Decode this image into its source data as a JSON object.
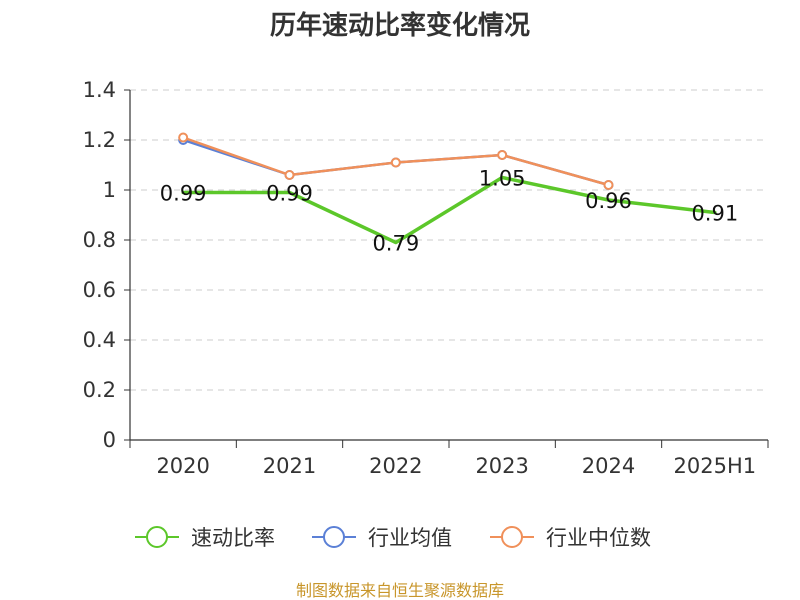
{
  "title": "历年速动比率变化情况",
  "source": "制图数据来自恒生聚源数据库",
  "chart_data": {
    "type": "line",
    "title": "历年速动比率变化情况",
    "xlabel": "",
    "ylabel": "",
    "categories": [
      "2020",
      "2021",
      "2022",
      "2023",
      "2024",
      "2025H1"
    ],
    "ylim": [
      0,
      1.4
    ],
    "yticks": [
      0,
      0.2,
      0.4,
      0.6,
      0.8,
      1,
      1.2,
      1.4
    ],
    "ytick_labels": [
      "0",
      "0.2",
      "0.4",
      "0.6",
      "0.8",
      "1",
      "1.2",
      "1.4"
    ],
    "grid": true,
    "legend_position": "bottom",
    "series": [
      {
        "name": "速动比率",
        "color": "#5cc72a",
        "values": [
          0.99,
          0.99,
          0.79,
          1.05,
          0.96,
          0.91
        ],
        "labels": [
          "0.99",
          "0.99",
          "0.79",
          "1.05",
          "0.96",
          "0.91"
        ],
        "show_markers": false
      },
      {
        "name": "行业均值",
        "color": "#5b80d6",
        "values": [
          1.2,
          1.06,
          1.11,
          1.14,
          1.02,
          null
        ],
        "show_markers": true
      },
      {
        "name": "行业中位数",
        "color": "#f0905a",
        "values": [
          1.21,
          1.06,
          1.11,
          1.14,
          1.02,
          null
        ],
        "show_markers": true
      }
    ]
  }
}
